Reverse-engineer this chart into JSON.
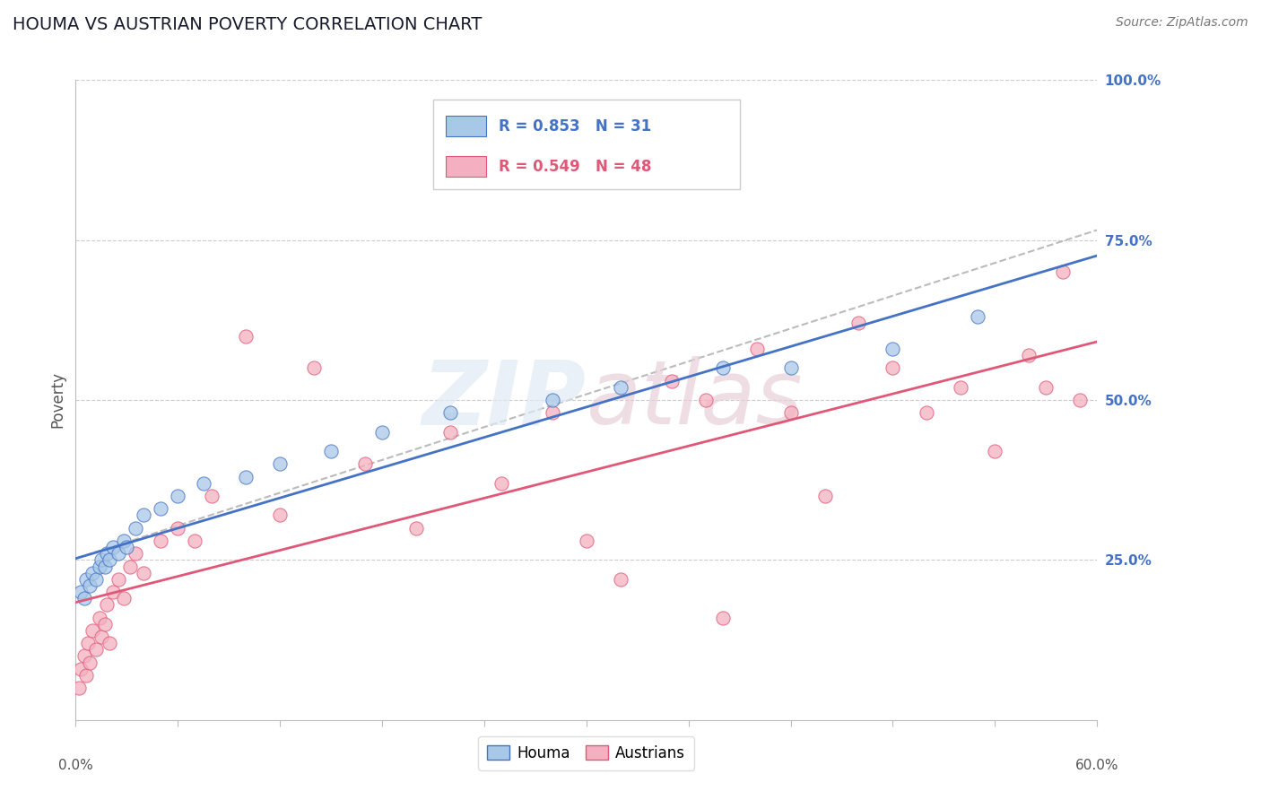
{
  "title": "HOUMA VS AUSTRIAN POVERTY CORRELATION CHART",
  "source": "Source: ZipAtlas.com",
  "ylabel": "Poverty",
  "x_range": [
    0,
    60
  ],
  "y_range": [
    0,
    100
  ],
  "houma_R": 0.853,
  "houma_N": 31,
  "austrians_R": 0.549,
  "austrians_N": 48,
  "houma_color": "#a8c8e8",
  "houma_line_color": "#4472c4",
  "austrians_color": "#f4b0c0",
  "austrians_line_color": "#e05878",
  "dashed_color": "#bbbbbb",
  "background_color": "#ffffff",
  "grid_color": "#cccccc",
  "houma_x": [
    0.3,
    0.5,
    0.6,
    0.8,
    1.0,
    1.2,
    1.4,
    1.5,
    1.7,
    1.8,
    2.0,
    2.2,
    2.5,
    2.8,
    3.0,
    3.5,
    4.0,
    5.0,
    6.0,
    7.5,
    10.0,
    12.0,
    15.0,
    18.0,
    22.0,
    28.0,
    32.0,
    38.0,
    42.0,
    48.0,
    53.0
  ],
  "houma_y": [
    20,
    19,
    22,
    21,
    23,
    22,
    24,
    25,
    24,
    26,
    25,
    27,
    26,
    28,
    27,
    30,
    32,
    33,
    35,
    37,
    38,
    40,
    42,
    45,
    48,
    50,
    52,
    55,
    55,
    58,
    63
  ],
  "austrians_x": [
    0.2,
    0.3,
    0.5,
    0.6,
    0.7,
    0.8,
    1.0,
    1.2,
    1.4,
    1.5,
    1.7,
    1.8,
    2.0,
    2.2,
    2.5,
    2.8,
    3.2,
    3.5,
    4.0,
    5.0,
    6.0,
    7.0,
    8.0,
    10.0,
    12.0,
    14.0,
    17.0,
    20.0,
    22.0,
    25.0,
    28.0,
    30.0,
    32.0,
    35.0,
    37.0,
    38.0,
    40.0,
    42.0,
    44.0,
    46.0,
    48.0,
    50.0,
    52.0,
    54.0,
    56.0,
    57.0,
    58.0,
    59.0
  ],
  "austrians_y": [
    5,
    8,
    10,
    7,
    12,
    9,
    14,
    11,
    16,
    13,
    15,
    18,
    12,
    20,
    22,
    19,
    24,
    26,
    23,
    28,
    30,
    28,
    35,
    60,
    32,
    55,
    40,
    30,
    45,
    37,
    48,
    28,
    22,
    53,
    50,
    16,
    58,
    48,
    35,
    62,
    55,
    48,
    52,
    42,
    57,
    52,
    70,
    50
  ],
  "title_fontsize": 14,
  "source_fontsize": 10,
  "tick_fontsize": 11,
  "legend_fontsize": 12
}
